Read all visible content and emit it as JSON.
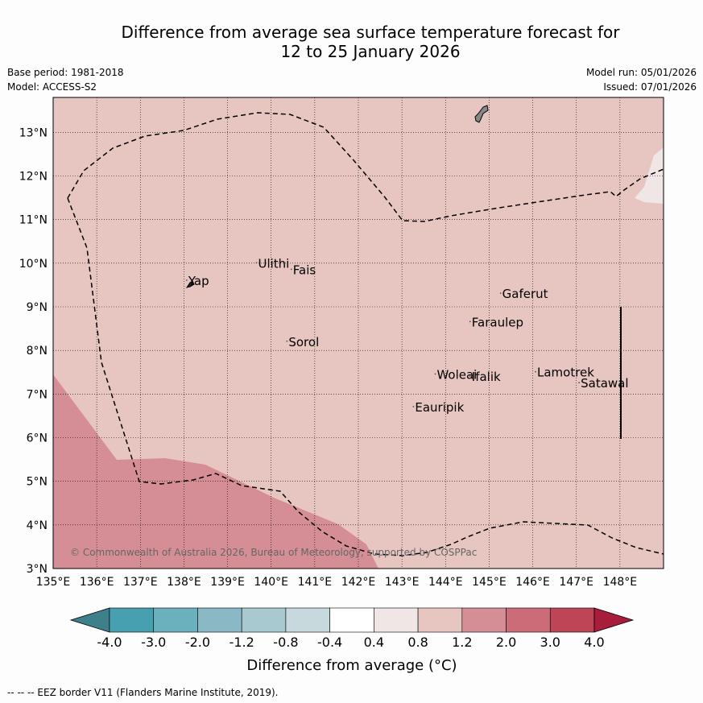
{
  "title": {
    "line1": "Difference from average sea surface temperature forecast for",
    "line2": "12 to 25 January 2026"
  },
  "meta": {
    "base_period": "Base period: 1981-2018",
    "model": "Model: ACCESS-S2",
    "model_run": "Model run: 05/01/2026",
    "issued": "Issued: 07/01/2026"
  },
  "map": {
    "lon_range": [
      135,
      149
    ],
    "lat_range": [
      3,
      13.8
    ],
    "lon_ticks": [
      "135°E",
      "136°E",
      "137°E",
      "138°E",
      "139°E",
      "140°E",
      "141°E",
      "142°E",
      "143°E",
      "144°E",
      "145°E",
      "146°E",
      "147°E",
      "148°E"
    ],
    "lat_ticks": [
      "3°N",
      "4°N",
      "5°N",
      "6°N",
      "7°N",
      "8°N",
      "9°N",
      "10°N",
      "11°N",
      "12°N",
      "13°N"
    ],
    "places": [
      {
        "name": "Yap",
        "lon": 138.1,
        "lat": 9.5
      },
      {
        "name": "Ulithi",
        "lon": 139.7,
        "lat": 9.9
      },
      {
        "name": "Fais",
        "lon": 140.5,
        "lat": 9.75
      },
      {
        "name": "Sorol",
        "lon": 140.4,
        "lat": 8.1
      },
      {
        "name": "Gaferut",
        "lon": 145.3,
        "lat": 9.2
      },
      {
        "name": "Faraulep",
        "lon": 144.6,
        "lat": 8.55
      },
      {
        "name": "Woleai",
        "lon": 143.8,
        "lat": 7.35
      },
      {
        "name": "Ifalik",
        "lon": 144.6,
        "lat": 7.3
      },
      {
        "name": "Lamotrek",
        "lon": 146.1,
        "lat": 7.4
      },
      {
        "name": "Satawal",
        "lon": 147.1,
        "lat": 7.15
      },
      {
        "name": "Eauripik",
        "lon": 143.3,
        "lat": 6.6
      }
    ],
    "copyright": "© Commonwealth of Australia 2026, Bureau of Meteorology, supported by COSPPac"
  },
  "legend": {
    "tick_labels": [
      "-4.0",
      "-3.0",
      "-2.0",
      "-1.2",
      "-0.8",
      "-0.4",
      "0.4",
      "0.8",
      "1.2",
      "2.0",
      "3.0",
      "4.0"
    ],
    "colors": {
      "under": "#3d7f8a",
      "bins": [
        "#46a0b0",
        "#6bb0bd",
        "#8ab9c5",
        "#a9c9d0",
        "#c8d9dd",
        "#ffffff",
        "#f0e6e6",
        "#e7c5c1",
        "#d58e96",
        "#cc6c78",
        "#be4556"
      ],
      "over": "#a81c3c"
    },
    "title": "Difference from average (°C)"
  },
  "field_colors": {
    "background": "#e7c5c1",
    "warm_patch": "#d58e96",
    "light_patch": "#f0e6e6"
  },
  "footer": "--  --  -- EEZ border V11 (Flanders Marine Institute, 2019)."
}
